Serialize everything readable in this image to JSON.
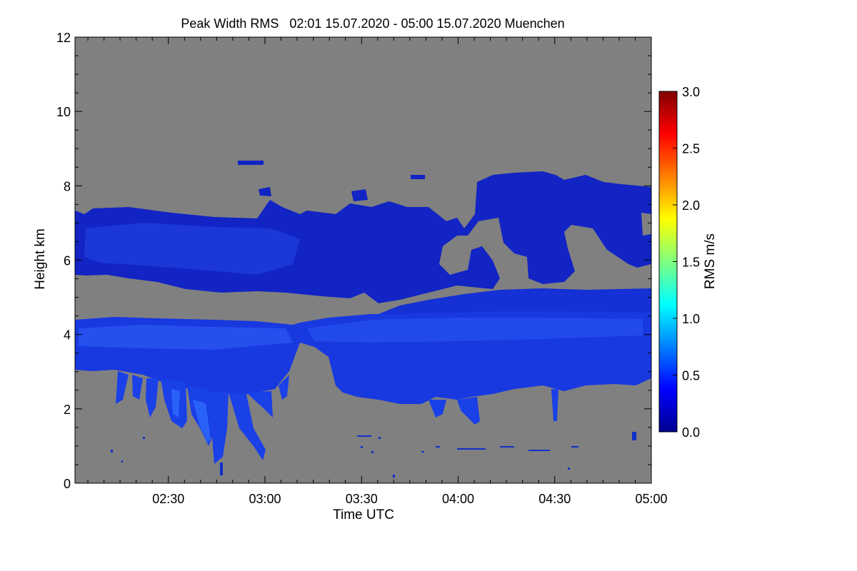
{
  "chart_data": {
    "type": "heatmap",
    "title": "Peak Width RMS   02:01 15.07.2020 - 05:00 15.07.2020 Muenchen",
    "xlabel": "Time UTC",
    "ylabel": "Height km",
    "xlim": [
      "02:01",
      "05:00"
    ],
    "ylim": [
      0,
      12
    ],
    "x_ticks": [
      "02:30",
      "03:00",
      "03:30",
      "04:00",
      "04:30",
      "05:00"
    ],
    "x_tick_minutes": [
      150,
      180,
      210,
      240,
      270,
      300
    ],
    "x_start_minutes": 121,
    "x_end_minutes": 300,
    "y_ticks": [
      "0",
      "2",
      "4",
      "6",
      "8",
      "10",
      "12"
    ],
    "y_tick_values": [
      0,
      2,
      4,
      6,
      8,
      10,
      12
    ],
    "colorbar": {
      "label": "RMS m/s",
      "range": [
        0.0,
        3.0
      ],
      "ticks": [
        "0.0",
        "0.5",
        "1.0",
        "1.5",
        "2.0",
        "2.5",
        "3.0"
      ],
      "tick_values": [
        0.0,
        0.5,
        1.0,
        1.5,
        2.0,
        2.5,
        3.0
      ],
      "colormap": "jet"
    },
    "nodata_color": "#808080",
    "grid": false,
    "legend": "right colorbar",
    "regions": [
      {
        "name": "upper cloud layer",
        "t_start": "02:01",
        "t_end": "05:00",
        "bottom_km": 5.0,
        "top_km": 8.4,
        "rms_m_s": 0.15
      },
      {
        "name": "lower cloud layer",
        "t_start": "02:01",
        "t_end": "05:00",
        "bottom_km": 3.0,
        "top_km": 5.2,
        "rms_m_s": 0.3
      },
      {
        "name": "precipitation fall streaks",
        "t_start": "02:20",
        "t_end": "03:00",
        "bottom_km": 0.8,
        "top_km": 3.2,
        "rms_m_s": 0.35
      }
    ]
  }
}
